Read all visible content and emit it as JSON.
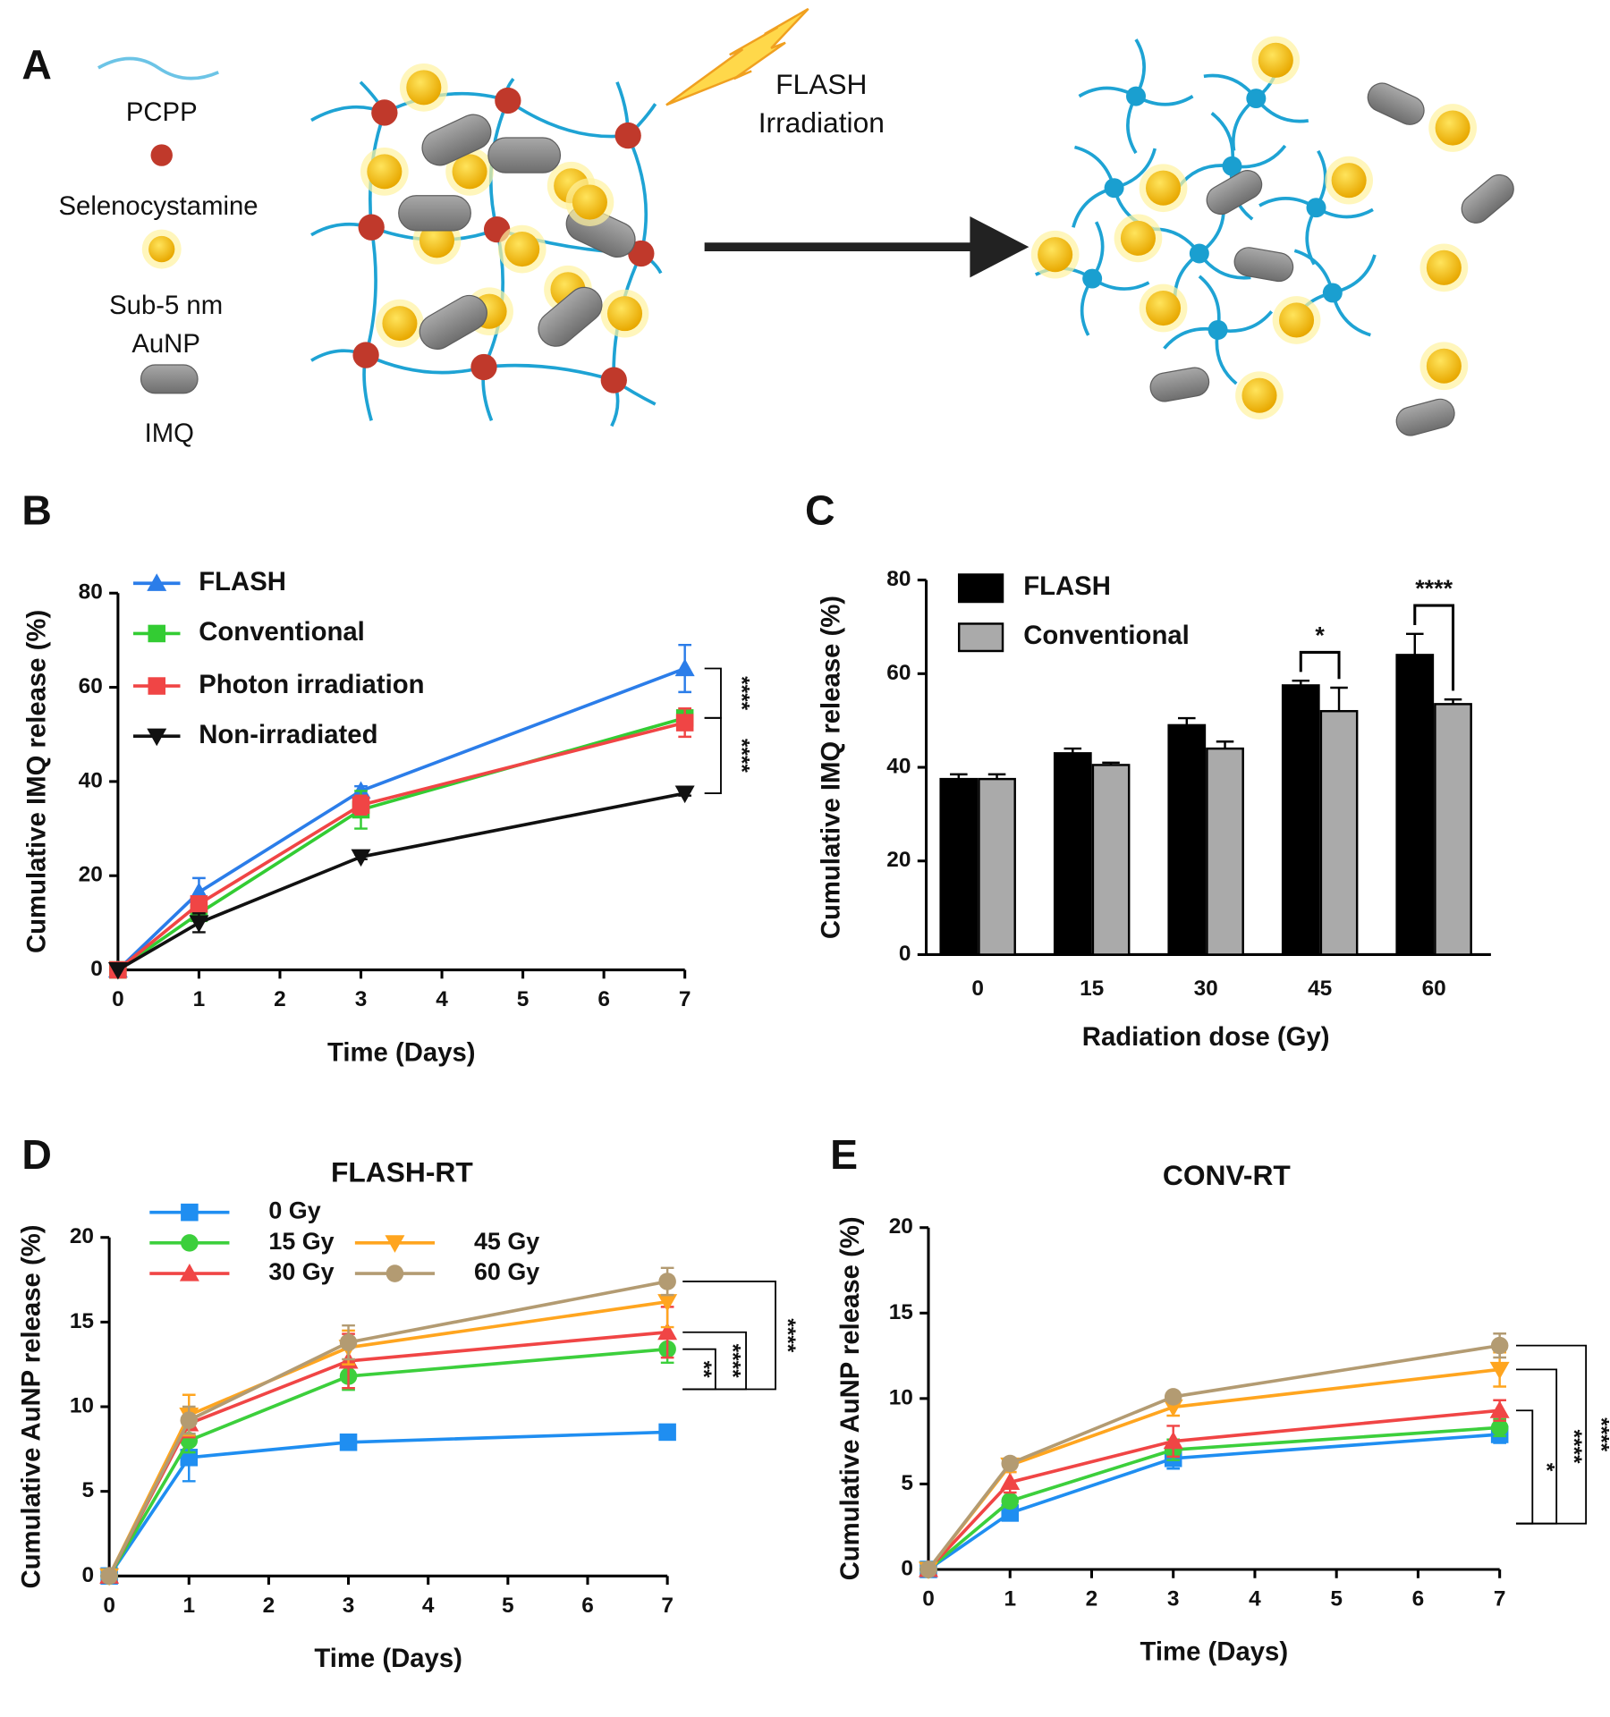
{
  "diagram": {
    "panel_label": "A",
    "legend_labels": [
      "PCPP",
      "Selenocystamine",
      "Sub-5 nm",
      "AuNP",
      "IMQ"
    ],
    "annotation": [
      "FLASH",
      "Irradiation"
    ]
  },
  "chart_data": [
    {
      "panel_label": "B",
      "type": "line",
      "x": [
        0,
        1,
        3,
        7
      ],
      "xlim": [
        0,
        7
      ],
      "xticks": [
        0,
        1,
        2,
        3,
        4,
        5,
        6,
        7
      ],
      "ylim": [
        0,
        80
      ],
      "yticks": [
        0,
        20,
        40,
        60,
        80
      ],
      "xlabel": "Time (Days)",
      "ylabel": "Cumulative IMQ release (%)",
      "series": [
        {
          "name": "FLASH",
          "color": "#2b7de9",
          "marker": "triangle-up",
          "values": [
            0,
            16.5,
            38,
            64
          ],
          "errors": [
            0,
            3,
            1,
            5
          ]
        },
        {
          "name": "Conventional",
          "color": "#33cc33",
          "marker": "square",
          "values": [
            0,
            12,
            34,
            53.5
          ],
          "errors": [
            0,
            1.5,
            4,
            2
          ]
        },
        {
          "name": "Photon irradiation",
          "color": "#f04545",
          "marker": "square",
          "values": [
            0,
            14,
            35,
            52.5
          ],
          "errors": [
            0,
            1.5,
            2,
            3
          ]
        },
        {
          "name": "Non-irradiated",
          "color": "#111111",
          "marker": "triangle-down",
          "values": [
            0,
            10,
            24,
            37.5
          ],
          "errors": [
            0,
            2,
            0.5,
            0.5
          ]
        }
      ],
      "annotations": [
        "****",
        "****"
      ]
    },
    {
      "panel_label": "C",
      "type": "bar",
      "categories": [
        "0",
        "15",
        "30",
        "45",
        "60"
      ],
      "ylim": [
        0,
        80
      ],
      "yticks": [
        0,
        20,
        40,
        60,
        80
      ],
      "xlabel": "Radiation dose (Gy)",
      "ylabel": "Cumulative IMQ release (%)",
      "series": [
        {
          "name": "FLASH",
          "color": "#000000",
          "values": [
            37.5,
            43,
            49,
            57.5,
            64
          ],
          "errors": [
            1,
            1,
            1.5,
            1,
            4.5
          ]
        },
        {
          "name": "Conventional",
          "color": "#aaaaaa",
          "values": [
            37.5,
            40.5,
            44,
            52,
            53.5
          ],
          "errors": [
            1,
            0.5,
            1.5,
            5,
            1
          ]
        }
      ],
      "annotations": [
        "*",
        "****"
      ]
    },
    {
      "panel_label": "D",
      "type": "line",
      "title": "FLASH-RT",
      "x": [
        0,
        1,
        3,
        7
      ],
      "xlim": [
        0,
        7
      ],
      "xticks": [
        0,
        1,
        2,
        3,
        4,
        5,
        6,
        7
      ],
      "ylim": [
        0,
        20
      ],
      "yticks": [
        0,
        5,
        10,
        15,
        20
      ],
      "xlabel": "Time (Days)",
      "ylabel": "Cumulative AuNP release (%)",
      "series": [
        {
          "name": "0 Gy",
          "color": "#1f8ef1",
          "marker": "square",
          "values": [
            0,
            7,
            7.9,
            8.5
          ],
          "errors": [
            0,
            1.4,
            0.2,
            0.2
          ]
        },
        {
          "name": "15 Gy",
          "color": "#3ccf3c",
          "marker": "circle",
          "values": [
            0,
            8,
            11.8,
            13.4
          ],
          "errors": [
            0,
            0.7,
            0.8,
            0.8
          ]
        },
        {
          "name": "30 Gy",
          "color": "#f04545",
          "marker": "triangle-up",
          "values": [
            0,
            9,
            12.7,
            14.4
          ],
          "errors": [
            0,
            0.8,
            1.6,
            1.5
          ]
        },
        {
          "name": "45 Gy",
          "color": "#ffa51f",
          "marker": "triangle-down",
          "values": [
            0,
            9.5,
            13.5,
            16.2
          ],
          "errors": [
            0,
            1.2,
            1,
            1.5
          ]
        },
        {
          "name": "60 Gy",
          "color": "#b39b72",
          "marker": "circle",
          "values": [
            0,
            9.2,
            13.8,
            17.4
          ],
          "errors": [
            0,
            0.8,
            1,
            0.8
          ]
        }
      ],
      "annotations": [
        "**",
        "****",
        "****"
      ]
    },
    {
      "panel_label": "E",
      "type": "line",
      "title": "CONV-RT",
      "x": [
        0,
        1,
        3,
        7
      ],
      "xlim": [
        0,
        7
      ],
      "xticks": [
        0,
        1,
        2,
        3,
        4,
        5,
        6,
        7
      ],
      "ylim": [
        0,
        20
      ],
      "yticks": [
        0,
        5,
        10,
        15,
        20
      ],
      "xlabel": "Time (Days)",
      "ylabel": "Cumulative AuNP release (%)",
      "series": [
        {
          "name": "0 Gy",
          "color": "#1f8ef1",
          "marker": "square",
          "values": [
            0,
            3.3,
            6.5,
            7.9
          ],
          "errors": [
            0,
            0.3,
            0.6,
            0.5
          ]
        },
        {
          "name": "15 Gy",
          "color": "#3ccf3c",
          "marker": "circle",
          "values": [
            0,
            4,
            7,
            8.3
          ],
          "errors": [
            0,
            0.3,
            0.6,
            0.5
          ]
        },
        {
          "name": "30 Gy",
          "color": "#f04545",
          "marker": "triangle-up",
          "values": [
            0,
            5.1,
            7.5,
            9.3
          ],
          "errors": [
            0,
            0.6,
            0.9,
            0.6
          ]
        },
        {
          "name": "45 Gy",
          "color": "#ffa51f",
          "marker": "triangle-down",
          "values": [
            0,
            6.1,
            9.5,
            11.7
          ],
          "errors": [
            0,
            0.4,
            0.5,
            1
          ]
        },
        {
          "name": "60 Gy",
          "color": "#b39b72",
          "marker": "circle",
          "values": [
            0,
            6.2,
            10.1,
            13.1
          ],
          "errors": [
            0,
            0.3,
            0.2,
            0.7
          ]
        }
      ],
      "annotations": [
        "*",
        "****",
        "****"
      ]
    }
  ]
}
